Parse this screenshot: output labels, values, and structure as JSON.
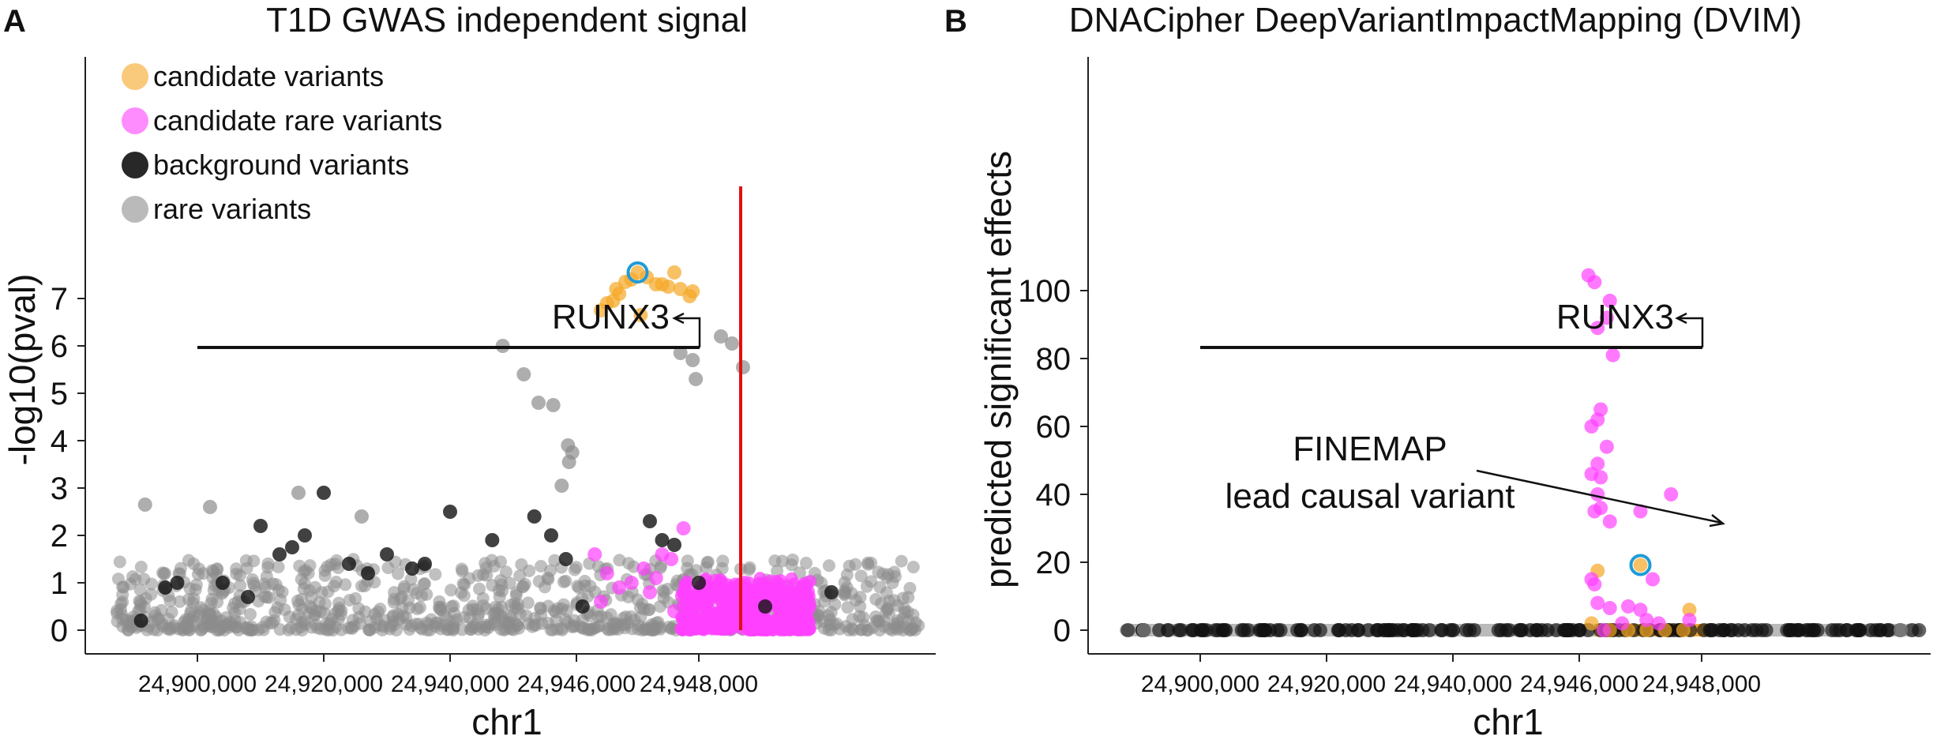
{
  "panels": [
    {
      "letter": "A",
      "title": "T1D GWAS independent signal",
      "xlabel": "chr1",
      "ylabel": "-log10(pval)"
    },
    {
      "letter": "B",
      "title": "DNACipher DeepVariantImpactMapping (DVIM)",
      "xlabel": "chr1",
      "ylabel": "predicted significant effects"
    }
  ],
  "legend": [
    {
      "label": "candidate variants",
      "color": "#f5a623"
    },
    {
      "label": "candidate rare variants",
      "color": "#ff40ff"
    },
    {
      "label": "background variants",
      "color": "#111111"
    },
    {
      "label": "rare variants",
      "color": "#8c8c8c"
    }
  ],
  "annotations": {
    "gene": "RUNX3",
    "finemap_line1": "FINEMAP",
    "finemap_line2": "lead causal variant"
  },
  "colors": {
    "candidate": "#f5a623",
    "candidate_rare": "#ff40ff",
    "background": "#111111",
    "rare": "#8c8c8c",
    "lead_ring": "#1e9bd7",
    "marker_line": "#e01010"
  },
  "chart_data": [
    {
      "type": "scatter",
      "title": "T1D GWAS independent signal",
      "xlabel": "chr1",
      "ylabel": "-log10(pval)",
      "x_ticks": [
        "24,900,000",
        "24,920,000",
        "24,940,000",
        "24,946,000",
        "24,948,000"
      ],
      "y_ticks": [
        0,
        1,
        2,
        3,
        4,
        5,
        6,
        7
      ],
      "ylim": [
        -0.2,
        7.7
      ],
      "grid": false,
      "legend_position": "top-left",
      "gene_label": "RUNX3",
      "series": [
        {
          "name": "candidate variants",
          "points": [
            [
              24947000,
              7.55
            ],
            [
              24946800,
              7.35
            ],
            [
              24946900,
              7.4
            ],
            [
              24947150,
              7.45
            ],
            [
              24947300,
              7.3
            ],
            [
              24947500,
              7.25
            ],
            [
              24947700,
              7.2
            ],
            [
              24947900,
              7.15
            ],
            [
              24946700,
              7.1
            ],
            [
              24946600,
              6.95
            ],
            [
              24946500,
              6.9
            ],
            [
              24946650,
              7.2
            ],
            [
              24947050,
              6.65
            ],
            [
              24947850,
              7.05
            ],
            [
              24947600,
              7.55
            ],
            [
              24946400,
              6.75
            ],
            [
              24947400,
              7.3
            ]
          ]
        },
        {
          "name": "candidate rare variants",
          "points": [
            [
              24946300,
              1.6
            ],
            [
              24946500,
              1.2
            ],
            [
              24946700,
              0.9
            ],
            [
              24947100,
              1.3
            ],
            [
              24947200,
              0.8
            ],
            [
              24947400,
              1.6
            ],
            [
              24947550,
              1.5
            ],
            [
              24947750,
              2.15
            ],
            [
              24946900,
              1.0
            ],
            [
              24947300,
              1.1
            ],
            [
              24946400,
              0.6
            ],
            [
              24947600,
              0.4
            ]
          ]
        },
        {
          "name": "background variants",
          "points": [
            [
              24893000,
              0.2
            ],
            [
              24896000,
              0.9
            ],
            [
              24897500,
              1.0
            ],
            [
              24904000,
              1.0
            ],
            [
              24908000,
              0.7
            ],
            [
              24910000,
              2.2
            ],
            [
              24913000,
              1.6
            ],
            [
              24915000,
              1.75
            ],
            [
              24917000,
              2.0
            ],
            [
              24920000,
              2.9
            ],
            [
              24924000,
              1.4
            ],
            [
              24927000,
              1.2
            ],
            [
              24930000,
              1.6
            ],
            [
              24934000,
              1.3
            ],
            [
              24936000,
              1.4
            ],
            [
              24940000,
              2.5
            ],
            [
              24942000,
              1.9
            ],
            [
              24944000,
              2.4
            ],
            [
              24944800,
              2.0
            ],
            [
              24945500,
              1.5
            ],
            [
              24946100,
              0.5
            ],
            [
              24947200,
              2.3
            ],
            [
              24947400,
              1.9
            ],
            [
              24947600,
              1.8
            ],
            [
              24948000,
              1.0
            ],
            [
              24948300,
              0.5
            ],
            [
              24948600,
              0.8
            ]
          ]
        },
        {
          "name": "rare variants",
          "points": [
            [
              24893500,
              2.65
            ],
            [
              24902000,
              2.6
            ],
            [
              24916000,
              2.9
            ],
            [
              24926000,
              2.4
            ],
            [
              24942500,
              6.0
            ],
            [
              24943500,
              5.4
            ],
            [
              24944200,
              4.8
            ],
            [
              24944900,
              4.75
            ],
            [
              24945300,
              3.05
            ],
            [
              24945600,
              3.9
            ],
            [
              24945800,
              3.75
            ],
            [
              24945650,
              3.55
            ],
            [
              24947700,
              5.85
            ],
            [
              24947900,
              5.7
            ],
            [
              24948100,
              6.2
            ],
            [
              24948200,
              5.55
            ],
            [
              24947950,
              5.3
            ],
            [
              24948150,
              6.05
            ]
          ]
        }
      ]
    },
    {
      "type": "scatter",
      "title": "DNACipher DeepVariantImpactMapping (DVIM)",
      "xlabel": "chr1",
      "ylabel": "predicted significant effects",
      "x_ticks": [
        "24,900,000",
        "24,920,000",
        "24,940,000",
        "24,946,000",
        "24,948,000"
      ],
      "y_ticks": [
        0,
        20,
        40,
        60,
        80,
        100
      ],
      "ylim": [
        -3,
        107
      ],
      "grid": false,
      "gene_label": "RUNX3",
      "annotation": "FINEMAP lead causal variant",
      "series": [
        {
          "name": "candidate variants",
          "points": [
            [
              24946300,
              17.5
            ],
            [
              24947000,
              19.2
            ],
            [
              24947800,
              6.0
            ],
            [
              24946200,
              2.0
            ],
            [
              24946500,
              0.0
            ],
            [
              24946800,
              0.0
            ],
            [
              24947100,
              0.0
            ],
            [
              24947400,
              0.0
            ],
            [
              24947700,
              0.0
            ]
          ]
        },
        {
          "name": "candidate rare variants",
          "points": [
            [
              24946150,
              104.5
            ],
            [
              24946250,
              102.5
            ],
            [
              24946500,
              97.0
            ],
            [
              24946450,
              92.0
            ],
            [
              24946300,
              89.0
            ],
            [
              24946550,
              81.0
            ],
            [
              24946350,
              65.0
            ],
            [
              24946300,
              62.0
            ],
            [
              24946200,
              60.0
            ],
            [
              24946450,
              54.0
            ],
            [
              24946300,
              49.0
            ],
            [
              24946200,
              46.0
            ],
            [
              24946350,
              45.0
            ],
            [
              24946300,
              40.0
            ],
            [
              24946350,
              36.0
            ],
            [
              24946250,
              35.0
            ],
            [
              24946500,
              32.0
            ],
            [
              24947000,
              35.0
            ],
            [
              24947500,
              40.0
            ],
            [
              24946200,
              15.0
            ],
            [
              24946250,
              13.5
            ],
            [
              24947200,
              15.0
            ],
            [
              24946300,
              8.0
            ],
            [
              24946500,
              6.5
            ],
            [
              24946800,
              7.0
            ],
            [
              24947000,
              6.0
            ],
            [
              24947800,
              3.0
            ],
            [
              24947100,
              3.0
            ],
            [
              24947300,
              2.0
            ],
            [
              24946700,
              2.0
            ],
            [
              24946400,
              0.0
            ]
          ]
        },
        {
          "name": "background variants",
          "points": [
            [
              24893000,
              0.0
            ],
            [
              24896000,
              0.0
            ],
            [
              24899000,
              0.0
            ],
            [
              24904000,
              0.0
            ],
            [
              24910000,
              0.0
            ],
            [
              24916000,
              0.0
            ],
            [
              24922000,
              0.0
            ],
            [
              24928000,
              0.0
            ],
            [
              24934000,
              0.0
            ],
            [
              24940000,
              0.0
            ],
            [
              24944000,
              0.0
            ],
            [
              24945500,
              0.0
            ],
            [
              24946000,
              0.0
            ],
            [
              24948100,
              0.0
            ],
            [
              24948400,
              0.0
            ],
            [
              24948700,
              0.0
            ]
          ]
        },
        {
          "name": "rare variants",
          "points": [
            [
              24893000,
              0.0
            ],
            [
              24948900,
              0.0
            ]
          ]
        }
      ]
    }
  ]
}
